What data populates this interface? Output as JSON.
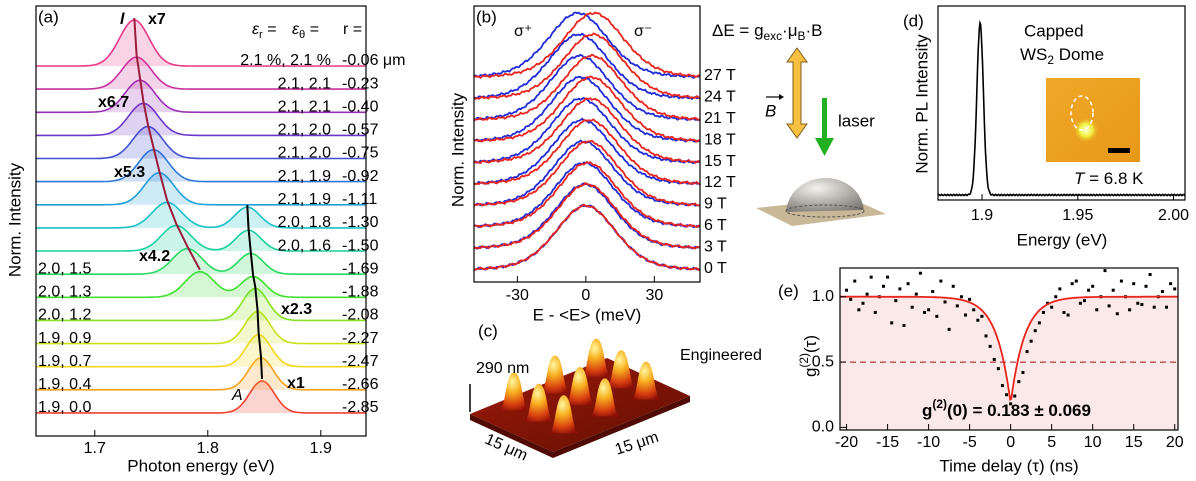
{
  "chart_data": [
    {
      "type": "spectra-stack",
      "panel": "(a)",
      "xlabel": "Photon energy (eV)",
      "ylabel": "Norm. Intensity",
      "xlim": [
        1.648,
        1.94
      ],
      "xticks": [
        1.7,
        1.8,
        1.9
      ],
      "header": {
        "eps_r": [
          "ε",
          "r",
          " ="
        ],
        "eps_t": [
          "ε",
          "θ",
          " ="
        ],
        "r": "r ="
      },
      "strain_labels": [
        "2.1 %, 2.1 %",
        "2.1, 2.1",
        "2.1, 2.1",
        "2.1, 2.0",
        "2.1, 2.0",
        "2.1, 1.9",
        "2.1, 1.9",
        "2.0, 1.8",
        "2.0, 1.6",
        "2.0, 1.5",
        "2.0, 1.3",
        "2.0, 1.2",
        "1.9, 0.9",
        "1.9, 0.7",
        "1.9, 0.4",
        "1.9, 0.0"
      ],
      "r_labels": [
        "-0.06 μm",
        "-0.23",
        "-0.40",
        "-0.57",
        "-0.75",
        "-0.92",
        "-1.11",
        "-1.30",
        "-1.50",
        "-1.69",
        "-1.88",
        "-2.08",
        "-2.27",
        "-2.47",
        "-2.66",
        "-2.85"
      ],
      "colors": [
        "#e8388a",
        "#c8309e",
        "#9a30b8",
        "#6a38c8",
        "#4050d0",
        "#2f78d8",
        "#20a0d8",
        "#18c0c8",
        "#18d0a0",
        "#28d860",
        "#40e030",
        "#88e020",
        "#c8e018",
        "#f0d818",
        "#f8a020",
        "#f04030"
      ],
      "series": [
        {
          "name": "l",
          "color": "#9b1c3a",
          "values": [
            1.735,
            1.737,
            1.74,
            1.743,
            1.747,
            1.752,
            1.757,
            1.764,
            1.772,
            1.782,
            1.793,
            null,
            null,
            null,
            null,
            null
          ]
        },
        {
          "name": "A",
          "color": "#000000",
          "values": [
            null,
            null,
            null,
            null,
            null,
            null,
            null,
            1.835,
            1.836,
            1.838,
            1.84,
            1.842,
            1.844,
            1.845,
            1.847,
            1.848
          ]
        }
      ],
      "multipliers": [
        {
          "label": "x7",
          "color": "#a3163c"
        },
        {
          "label": "x6.7",
          "color": "#7030a0"
        },
        {
          "label": "x5.3",
          "color": "#2868c0"
        },
        {
          "label": "x4.2",
          "color": "#30b020"
        },
        {
          "label": "x2.3",
          "color": "#a8b820"
        },
        {
          "label": "x1",
          "color": "#c02020"
        }
      ]
    },
    {
      "type": "spectra-pol",
      "panel": "(b)",
      "xlabel": "E - <E> (meV)",
      "ylabel": "Norm. Intensity",
      "xlim": [
        -49,
        50
      ],
      "xticks": [
        -30,
        0,
        30
      ],
      "categories": [
        "27 T",
        "24 T",
        "21 T",
        "18 T",
        "15 T",
        "12 T",
        "9 T",
        "6 T",
        "3 T",
        "0 T"
      ],
      "series": [
        {
          "name": "σ⁺",
          "color": "#1f2bd6",
          "values": [
            -3.5,
            -3.1,
            -2.7,
            -2.3,
            -2,
            -1.6,
            -1.2,
            -0.8,
            -0.4,
            0
          ]
        },
        {
          "name": "σ⁻",
          "color": "#e8241c",
          "values": [
            3.5,
            3.1,
            2.7,
            2.3,
            2,
            1.6,
            1.2,
            0.8,
            0.4,
            0
          ]
        }
      ],
      "equation": [
        "ΔE = g",
        "exc",
        "·μ",
        "B",
        "·B"
      ],
      "field_label": "B",
      "laser_label": "laser"
    },
    {
      "type": "surface-3d",
      "panel": "(c)",
      "height_label": "290 nm",
      "title": "Engineered",
      "x_label": "15 μm",
      "y_label": "15 μm"
    },
    {
      "type": "line",
      "panel": "(d)",
      "xlabel": "Energy (eV)",
      "ylabel": "Norm. PL Intensity",
      "xlim": [
        1.877,
        2.006
      ],
      "xticks": [
        1.9,
        1.95,
        {
          "value": 2.0,
          "label": "2.00"
        }
      ],
      "peak": 1.899,
      "color": "#000000",
      "title": "Capped",
      "subtitle": [
        "WS",
        "2",
        " Dome"
      ],
      "annotation": [
        "T",
        " = 6.8 K"
      ]
    },
    {
      "type": "scatter",
      "panel": "(e)",
      "xlabel": "Time delay (τ) (ns)",
      "ylabel": [
        "g",
        "(2)",
        "(τ)"
      ],
      "xlim": [
        -20.8,
        20.4
      ],
      "ylim": [
        -0.02,
        1.22
      ],
      "xticks": [
        -20,
        -15,
        -10,
        -5,
        0,
        5,
        10,
        15,
        20
      ],
      "yticks": [
        {
          "value": 0,
          "label": "0.0"
        },
        {
          "value": 0.5,
          "label": "0.5"
        },
        {
          "value": 1,
          "label": "1.0"
        }
      ],
      "x": [
        -20,
        -19.5,
        -19,
        -18.5,
        -18,
        -17.5,
        -17,
        -16.5,
        -16,
        -15.5,
        -15,
        -14.5,
        -14,
        -13.5,
        -13,
        -12.5,
        -12,
        -11.5,
        -11,
        -10.5,
        -10,
        -9.5,
        -9,
        -8.5,
        -8,
        -7.5,
        -7,
        -6.5,
        -6,
        -5.5,
        -5,
        -4.5,
        -4,
        -3.5,
        -3,
        -2.5,
        -2,
        -1.5,
        -1,
        -0.5,
        0,
        0.5,
        1,
        1.5,
        2,
        2.5,
        3,
        3.5,
        4,
        4.5,
        5,
        5.5,
        6,
        6.5,
        7,
        7.5,
        8,
        8.5,
        9,
        9.5,
        10,
        10.5,
        11,
        11.5,
        12,
        12.5,
        13,
        13.5,
        14,
        14.5,
        15,
        15.5,
        16,
        16.5,
        17,
        17.5,
        18,
        18.5,
        19,
        19.5,
        20
      ],
      "values": [
        1.05,
        0.98,
        1.12,
        0.9,
        0.95,
        1.02,
        1.15,
        0.88,
        1.0,
        1.08,
        1.15,
        0.8,
        0.97,
        1.06,
        0.78,
        1.1,
        0.92,
        1.02,
        1.18,
        0.88,
        0.9,
        1.04,
        0.85,
        1.12,
        0.96,
        0.75,
        1.08,
        0.93,
        1.0,
        0.86,
        0.98,
        0.9,
        0.82,
        0.85,
        0.7,
        0.62,
        0.52,
        0.45,
        0.32,
        0.25,
        0.18,
        0.24,
        0.35,
        0.42,
        0.58,
        0.66,
        0.74,
        0.8,
        0.88,
        0.95,
        0.92,
        1.0,
        1.06,
        0.88,
        0.86,
        1.1,
        1.12,
        0.95,
        0.97,
        1.05,
        1.08,
        0.9,
        1.0,
        1.2,
        0.93,
        1.05,
        0.87,
        1.12,
        1.0,
        0.9,
        1.1,
        0.95,
        0.94,
        1.08,
        1.17,
        0.92,
        1.0,
        1.04,
        0.92,
        1.1,
        1.06
      ],
      "color": "#000000",
      "fit": {
        "g0": 0.183,
        "tau": 1.7,
        "color": "#e8241c"
      },
      "threshold": 0.5,
      "fit_label": [
        "g",
        "(2)",
        "(0) = 0.183 ± 0.069"
      ]
    }
  ]
}
